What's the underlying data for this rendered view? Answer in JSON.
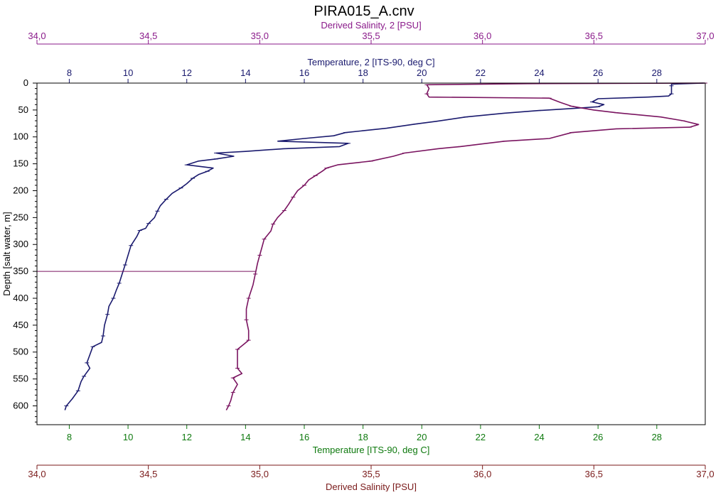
{
  "chart_data": {
    "type": "line",
    "title": "PIRA015_A.cnv",
    "colors": {
      "temperature_2": "#1a1a6e",
      "salinity_2": "#7a1460",
      "temperature": "#0f7a0f",
      "salinity": "#7a1a1a",
      "marker": "#7a1460",
      "top_salinity_axis": "#8a1a8a",
      "top_temperature_axis": "#1a1a6e"
    },
    "axes": {
      "y": {
        "label": "Depth [salt water, m]",
        "range": [
          0,
          635
        ],
        "ticks": [
          0,
          50,
          100,
          150,
          200,
          250,
          300,
          350,
          400,
          450,
          500,
          550,
          600
        ],
        "reversed": true
      },
      "top_salinity": {
        "label": "Derived Salinity, 2 [PSU]",
        "range": [
          34.0,
          37.0
        ],
        "ticks": [
          "34,0",
          "34,5",
          "35,0",
          "35,5",
          "36,0",
          "36,5",
          "37,0"
        ]
      },
      "top_temperature": {
        "label": "Temperature, 2 [ITS-90, deg C]",
        "range": [
          6.9,
          29.65
        ],
        "ticks": [
          "8",
          "10",
          "12",
          "14",
          "16",
          "18",
          "20",
          "22",
          "24",
          "26",
          "28"
        ]
      },
      "bottom_temperature": {
        "label": "Temperature [ITS-90, deg C]",
        "range": [
          6.9,
          29.65
        ],
        "ticks": [
          "8",
          "10",
          "12",
          "14",
          "16",
          "18",
          "20",
          "22",
          "24",
          "26",
          "28"
        ]
      },
      "bottom_salinity": {
        "label": "Derived Salinity [PSU]",
        "range": [
          34.0,
          37.0
        ],
        "ticks": [
          "34,0",
          "34,5",
          "35,0",
          "35,5",
          "36,0",
          "36,5",
          "37,0"
        ]
      }
    },
    "marker_depth": 350,
    "series": [
      {
        "axis": "temperature",
        "points": [
          [
            29.6,
            0
          ],
          [
            28.5,
            2
          ],
          [
            28.5,
            5
          ],
          [
            28.5,
            10
          ],
          [
            28.5,
            20
          ],
          [
            28.4,
            24
          ],
          [
            27.7,
            26
          ],
          [
            26.0,
            29
          ],
          [
            25.8,
            35
          ],
          [
            26.2,
            40
          ],
          [
            26.0,
            44
          ],
          [
            25.2,
            47
          ],
          [
            24.0,
            51
          ],
          [
            22.8,
            56
          ],
          [
            21.5,
            63
          ],
          [
            20.5,
            71
          ],
          [
            19.8,
            76
          ],
          [
            18.8,
            84
          ],
          [
            17.4,
            92
          ],
          [
            17.0,
            98
          ],
          [
            16.0,
            103
          ],
          [
            15.1,
            108
          ],
          [
            17.5,
            112
          ],
          [
            17.2,
            118
          ],
          [
            15.3,
            122
          ],
          [
            14.0,
            127
          ],
          [
            13.0,
            130
          ],
          [
            13.6,
            136
          ],
          [
            13.0,
            141
          ],
          [
            12.4,
            145
          ],
          [
            12.0,
            152
          ],
          [
            12.9,
            158
          ],
          [
            12.7,
            164
          ],
          [
            12.4,
            170
          ],
          [
            12.2,
            177
          ],
          [
            12.0,
            187
          ],
          [
            11.8,
            195
          ],
          [
            11.5,
            205
          ],
          [
            11.3,
            216
          ],
          [
            11.1,
            228
          ],
          [
            11.0,
            238
          ],
          [
            10.9,
            250
          ],
          [
            10.7,
            261
          ],
          [
            10.6,
            270
          ],
          [
            10.4,
            274
          ],
          [
            10.3,
            285
          ],
          [
            10.1,
            302
          ],
          [
            10.0,
            320
          ],
          [
            9.9,
            338
          ],
          [
            9.8,
            355
          ],
          [
            9.7,
            372
          ],
          [
            9.6,
            385
          ],
          [
            9.5,
            400
          ],
          [
            9.35,
            415
          ],
          [
            9.3,
            430
          ],
          [
            9.2,
            450
          ],
          [
            9.15,
            470
          ],
          [
            9.1,
            482
          ],
          [
            8.8,
            490
          ],
          [
            8.7,
            505
          ],
          [
            8.6,
            520
          ],
          [
            8.7,
            530
          ],
          [
            8.5,
            545
          ],
          [
            8.4,
            555
          ],
          [
            8.3,
            572
          ],
          [
            8.1,
            587
          ],
          [
            7.9,
            600
          ],
          [
            7.85,
            608
          ]
        ]
      },
      {
        "axis": "salinity",
        "points": [
          [
            37.0,
            0
          ],
          [
            36.2,
            1
          ],
          [
            35.75,
            3
          ],
          [
            35.76,
            10
          ],
          [
            35.75,
            20
          ],
          [
            35.76,
            26
          ],
          [
            36.3,
            28
          ],
          [
            36.35,
            36
          ],
          [
            36.4,
            43
          ],
          [
            36.5,
            50
          ],
          [
            36.6,
            55
          ],
          [
            36.8,
            63
          ],
          [
            36.9,
            70
          ],
          [
            36.97,
            77
          ],
          [
            36.93,
            82
          ],
          [
            36.6,
            85
          ],
          [
            36.4,
            92
          ],
          [
            36.3,
            103
          ],
          [
            36.1,
            108
          ],
          [
            36.0,
            113
          ],
          [
            35.9,
            118
          ],
          [
            35.8,
            122
          ],
          [
            35.65,
            130
          ],
          [
            35.6,
            136
          ],
          [
            35.5,
            145
          ],
          [
            35.35,
            152
          ],
          [
            35.3,
            158
          ],
          [
            35.28,
            164
          ],
          [
            35.25,
            172
          ],
          [
            35.22,
            180
          ],
          [
            35.2,
            190
          ],
          [
            35.17,
            200
          ],
          [
            35.15,
            212
          ],
          [
            35.13,
            225
          ],
          [
            35.11,
            237
          ],
          [
            35.08,
            250
          ],
          [
            35.06,
            262
          ],
          [
            35.05,
            275
          ],
          [
            35.02,
            290
          ],
          [
            35.01,
            305
          ],
          [
            35.0,
            320
          ],
          [
            34.99,
            335
          ],
          [
            34.98,
            355
          ],
          [
            34.97,
            375
          ],
          [
            34.95,
            400
          ],
          [
            34.94,
            420
          ],
          [
            34.94,
            440
          ],
          [
            34.95,
            460
          ],
          [
            34.95,
            478
          ],
          [
            34.93,
            485
          ],
          [
            34.9,
            495
          ],
          [
            34.9,
            510
          ],
          [
            34.9,
            530
          ],
          [
            34.92,
            540
          ],
          [
            34.88,
            548
          ],
          [
            34.9,
            560
          ],
          [
            34.88,
            575
          ],
          [
            34.87,
            590
          ],
          [
            34.86,
            600
          ],
          [
            34.85,
            608
          ]
        ]
      }
    ]
  }
}
